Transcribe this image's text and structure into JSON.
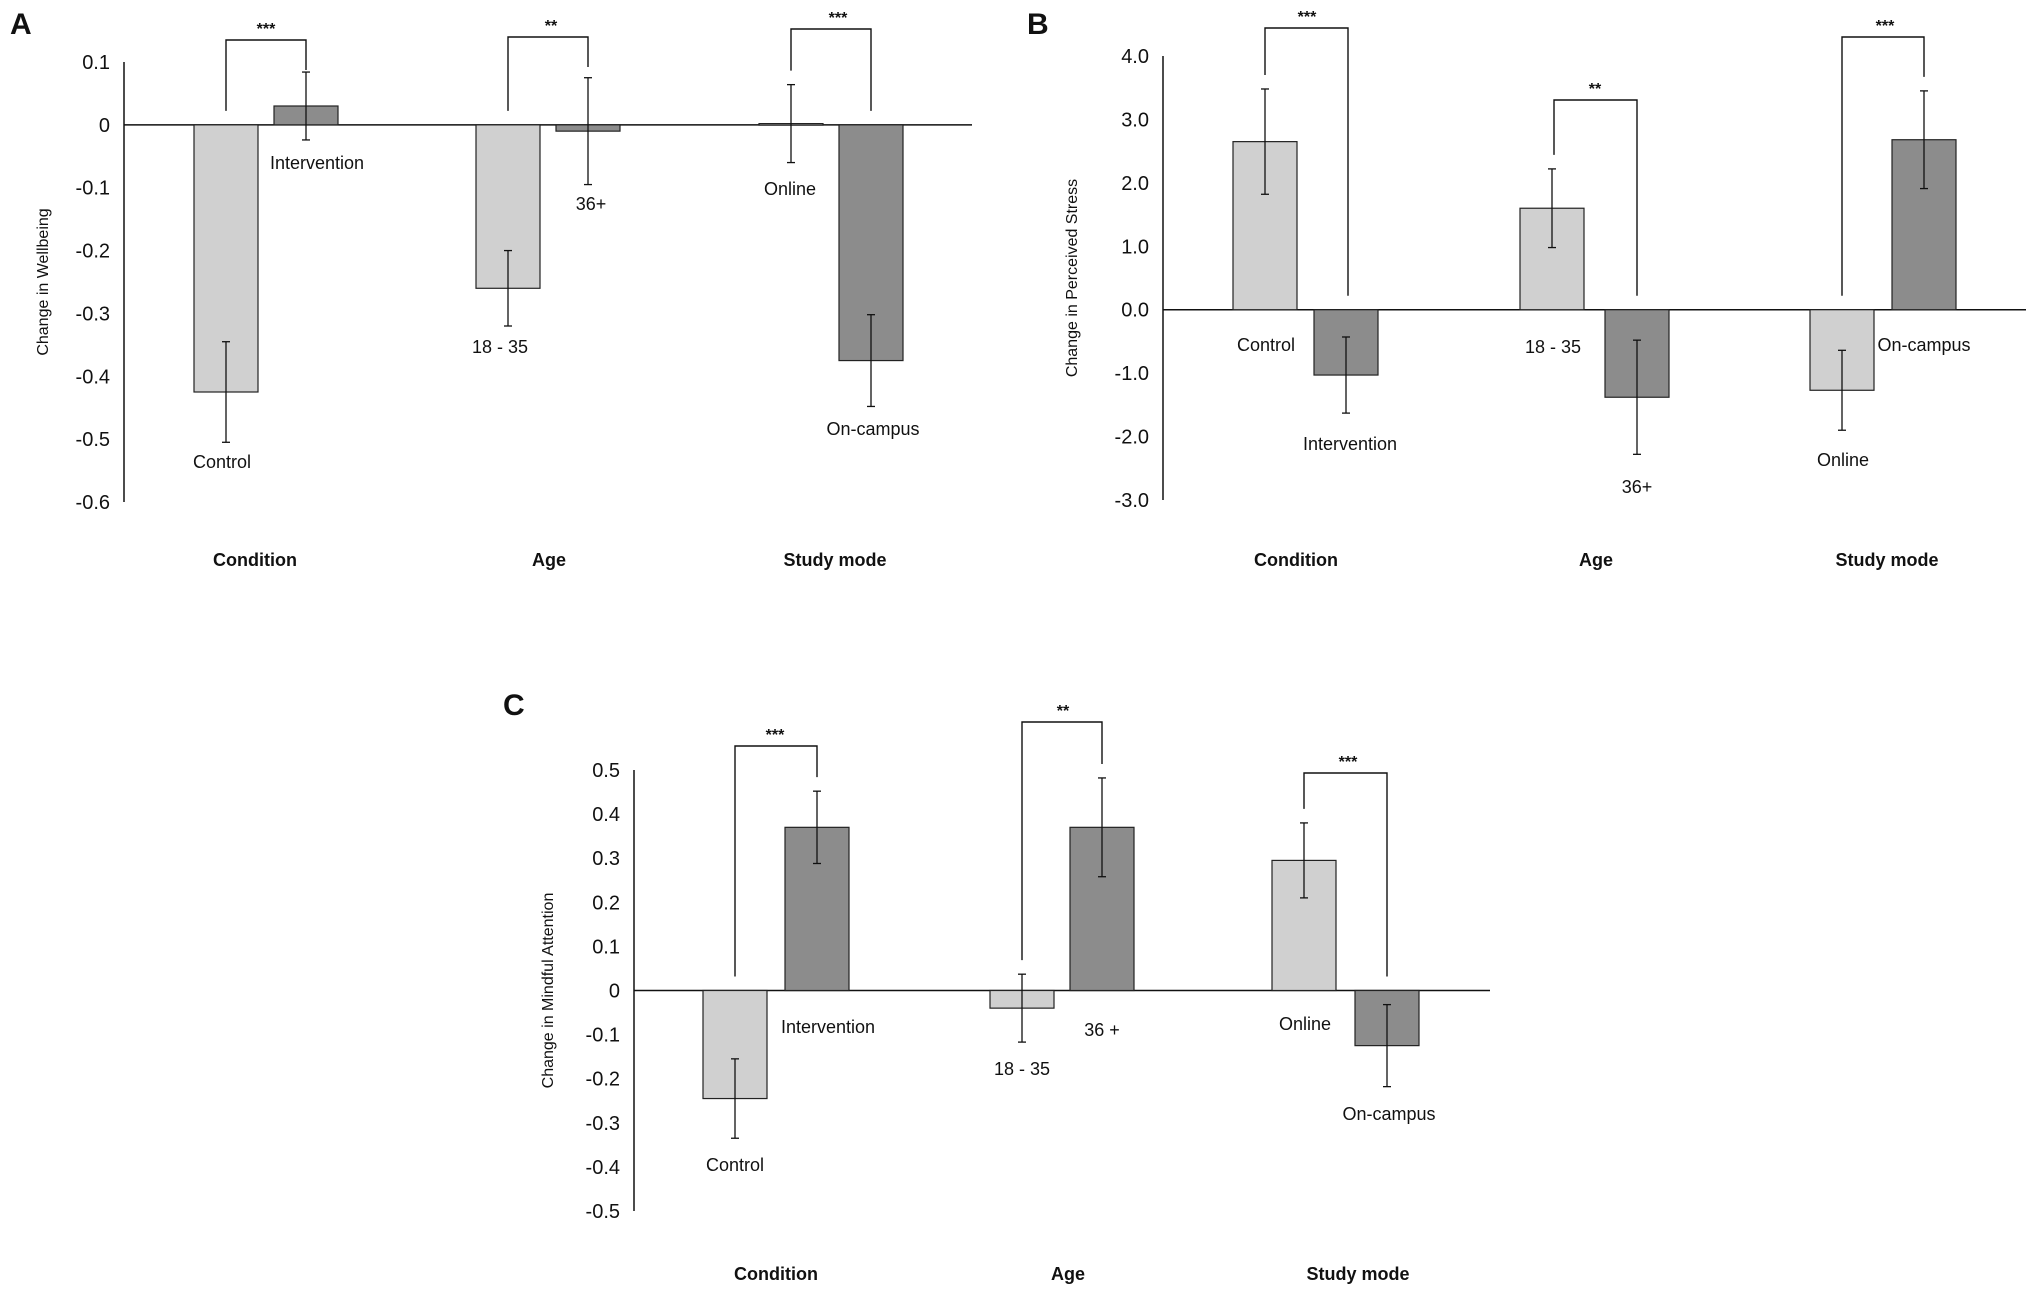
{
  "colors": {
    "light_bar": "#d0d0d0",
    "dark_bar": "#8c8c8c",
    "axis": "#111111",
    "bar_stroke": "#222222"
  },
  "chart_data": [
    {
      "panel": "A",
      "type": "bar",
      "ylabel": "Change in Wellbeing",
      "ylim": [
        -0.6,
        0.1
      ],
      "ticks": [
        0.1,
        0,
        -0.1,
        -0.2,
        -0.3,
        -0.4,
        -0.5,
        -0.6
      ],
      "tick_labels": [
        "0.1",
        "0",
        "-0.1",
        "-0.2",
        "-0.3",
        "-0.4",
        "-0.5",
        "-0.6"
      ],
      "groups": [
        {
          "category": "Condition",
          "significance": "***",
          "bars": [
            {
              "label": "Control",
              "value": -0.425,
              "err": 0.08,
              "shade": "light"
            },
            {
              "label": "Intervention",
              "value": 0.03,
              "err": 0.054,
              "shade": "dark"
            }
          ]
        },
        {
          "category": "Age",
          "significance": "**",
          "bars": [
            {
              "label": "18 - 35",
              "value": -0.26,
              "err": 0.06,
              "shade": "light"
            },
            {
              "label": "36+",
              "value": -0.01,
              "err": 0.085,
              "shade": "dark"
            }
          ]
        },
        {
          "category": "Study mode",
          "significance": "***",
          "bars": [
            {
              "label": "Online",
              "value": 0.002,
              "err": 0.062,
              "shade": "light"
            },
            {
              "label": "On-campus",
              "value": -0.375,
              "err": 0.073,
              "shade": "dark"
            }
          ]
        }
      ]
    },
    {
      "panel": "B",
      "type": "bar",
      "ylabel": "Change in Perceived Stress",
      "ylim": [
        -3.0,
        4.0
      ],
      "ticks": [
        4,
        3,
        2,
        1,
        0,
        -1,
        -2,
        -3
      ],
      "tick_labels": [
        "4.0",
        "3.0",
        "2.0",
        "1.0",
        "0.0",
        "-1.0",
        "-2.0",
        "-3.0"
      ],
      "groups": [
        {
          "category": "Condition",
          "significance": "***",
          "bars": [
            {
              "label": "Control",
              "value": 2.65,
              "err": 0.83,
              "shade": "light"
            },
            {
              "label": "Intervention",
              "value": -1.03,
              "err": 0.6,
              "shade": "dark"
            }
          ]
        },
        {
          "category": "Age",
          "significance": "**",
          "bars": [
            {
              "label": "18 - 35",
              "value": 1.6,
              "err": 0.62,
              "shade": "light"
            },
            {
              "label": "36+",
              "value": -1.38,
              "err": 0.9,
              "shade": "dark"
            }
          ]
        },
        {
          "category": "Study mode",
          "significance": "***",
          "bars": [
            {
              "label": "Online",
              "value": -1.27,
              "err": 0.63,
              "shade": "light"
            },
            {
              "label": "On-campus",
              "value": 2.68,
              "err": 0.77,
              "shade": "dark"
            }
          ]
        }
      ]
    },
    {
      "panel": "C",
      "type": "bar",
      "ylabel": "Change in Mindful Attention",
      "ylim": [
        -0.5,
        0.5
      ],
      "ticks": [
        0.5,
        0.4,
        0.3,
        0.2,
        0.1,
        0,
        -0.1,
        -0.2,
        -0.3,
        -0.4,
        -0.5
      ],
      "tick_labels": [
        "0.5",
        "0.4",
        "0.3",
        "0.2",
        "0.1",
        "0",
        "-0.1",
        "-0.2",
        "-0.3",
        "-0.4",
        "-0.5"
      ],
      "groups": [
        {
          "category": "Condition",
          "significance": "***",
          "bars": [
            {
              "label": "Control",
              "value": -0.245,
              "err": 0.09,
              "shade": "light"
            },
            {
              "label": "Intervention",
              "value": 0.37,
              "err": 0.082,
              "shade": "dark"
            }
          ]
        },
        {
          "category": "Age",
          "significance": "**",
          "bars": [
            {
              "label": "18 - 35",
              "value": -0.04,
              "err": 0.077,
              "shade": "light"
            },
            {
              "label": "36 +",
              "value": 0.37,
              "err": 0.112,
              "shade": "dark"
            }
          ]
        },
        {
          "category": "Study mode",
          "significance": "***",
          "bars": [
            {
              "label": "Online",
              "value": 0.295,
              "err": 0.085,
              "shade": "light"
            },
            {
              "label": "On-campus",
              "value": -0.125,
              "err": 0.093,
              "shade": "dark"
            }
          ]
        }
      ]
    }
  ]
}
